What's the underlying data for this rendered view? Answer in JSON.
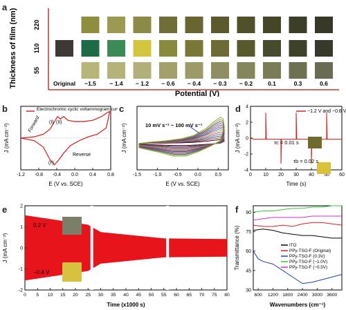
{
  "panels": {
    "a": {
      "label": "a"
    },
    "b": {
      "label": "b"
    },
    "c": {
      "label": "c"
    },
    "d": {
      "label": "d"
    },
    "e": {
      "label": "e"
    },
    "f": {
      "label": "f"
    }
  },
  "chart_data": [
    {
      "type": "table",
      "panel": "a",
      "ylabel": "Thickness of film (nm)",
      "xlabel": "Potential (V)",
      "rows": [
        "220",
        "110",
        "55"
      ],
      "columns": [
        "Original",
        "−1.5",
        "− 1.4",
        "− 1.2",
        "− 0.6",
        "− 0.4",
        "− 0.3",
        "− 0.2",
        "0.1",
        "0.3",
        "0.6"
      ],
      "colors": [
        [
          null,
          "#8f8d3e",
          "#9a9a52",
          "#8c8a47",
          "#6f6d38",
          "#676631",
          "#5b5a2c",
          "#50502a",
          "#454528",
          "#3d3e27",
          "#383828"
        ],
        [
          "#3e3936",
          "#1f6a46",
          "#3c8a55",
          "#d4c53e",
          "#8a8a3f",
          "#7a7837",
          "#6b6b33",
          "#585a2e",
          "#474a2c",
          "#3e4229",
          "#373a2a"
        ],
        [
          null,
          "#b7b578",
          "#b4b47a",
          "#b1b07a",
          "#a3a06c",
          "#9c9a68",
          "#8e8e62",
          "#84865c",
          "#7a7b57",
          "#6e7052",
          "#696b52"
        ]
      ]
    },
    {
      "type": "line",
      "panel": "b",
      "title": "",
      "legend": "Electrochromic cyclic voltammogram curve",
      "xlabel": "E (V vs. SCE)",
      "ylabel": "J (mA cm⁻²)",
      "xlim": [
        -1.2,
        0.8
      ],
      "ylim": [
        -0.28,
        0.22
      ],
      "xticks": [
        "-1.2",
        "-0.8",
        "-0.4",
        "0.0",
        "0.4",
        "0.8"
      ],
      "annotations": [
        "Forward",
        "Reverse",
        "(I)",
        "(II)",
        "(I')"
      ],
      "series": [
        {
          "values_x": [
            -1.2,
            -0.9,
            -0.7,
            -0.55,
            -0.45,
            -0.38,
            -0.32,
            -0.25,
            -0.15,
            0.0,
            0.2,
            0.4,
            0.6,
            0.72,
            0.78
          ],
          "values_y": [
            -0.03,
            -0.02,
            0.0,
            0.04,
            0.1,
            0.14,
            0.12,
            0.14,
            0.11,
            0.1,
            0.1,
            0.11,
            0.14,
            0.17,
            0.18
          ]
        },
        {
          "values_x": [
            0.78,
            0.7,
            0.5,
            0.3,
            0.1,
            -0.1,
            -0.25,
            -0.35,
            -0.45,
            -0.55,
            -0.7,
            -0.9,
            -1.2
          ],
          "values_y": [
            0.18,
            0.05,
            0.0,
            -0.02,
            -0.05,
            -0.09,
            -0.15,
            -0.2,
            -0.24,
            -0.2,
            -0.1,
            -0.05,
            -0.03
          ]
        }
      ]
    },
    {
      "type": "line",
      "panel": "c",
      "xlabel": "E (V vs. SCE)",
      "ylabel": "J (mA cm⁻²)",
      "xlim": [
        -1.5,
        0.75
      ],
      "xticks": [
        "-1.5",
        "-1.0",
        "-0.5",
        "0.0",
        "0.5"
      ],
      "annotation": "10 mV s⁻¹ ~ 100 mV s⁻¹",
      "series_colors": [
        "#000000",
        "#e41a1c",
        "#1f3fbf",
        "#2ca02c",
        "#d62fd6",
        "#e68a00",
        "#0a7f7f",
        "#7f1fbf",
        "#aa5500",
        "#0a7fff",
        "#c02040",
        "#3fbf3f",
        "#9a9a1a"
      ],
      "scale_factors": [
        0.15,
        0.22,
        0.29,
        0.36,
        0.43,
        0.5,
        0.57,
        0.64,
        0.71,
        0.78,
        0.85,
        0.92,
        1.0
      ]
    },
    {
      "type": "line",
      "panel": "d",
      "legend": "−1.2 V and −0.6 V",
      "xlabel": "Time (s)",
      "ylabel": "J (mA cm⁻²)",
      "xlim": [
        0,
        60
      ],
      "ylim": [
        -4,
        4
      ],
      "xticks": [
        "0",
        "10",
        "20",
        "30",
        "40",
        "50",
        "60"
      ],
      "yticks": [
        "4",
        "2",
        "0",
        "-2",
        "-4"
      ],
      "annotations": [
        "τc = 0.01 s",
        "τb = 0.02 s"
      ],
      "spike_times": [
        10,
        20,
        30,
        40,
        50
      ],
      "spike_values": [
        3.2,
        -3.2,
        3.2,
        -3.2,
        3.2
      ],
      "baseline": -0.15
    },
    {
      "type": "area",
      "panel": "e",
      "xlabel": "Time (x1000 s)",
      "ylabel": "J (mA cm⁻²)",
      "ylim": [
        -2,
        2
      ],
      "yticks": [
        "2",
        "1",
        "0",
        "-1",
        "-2"
      ],
      "xticks": [
        "0",
        "5",
        "10",
        "15",
        "20",
        "25",
        "30",
        "35",
        "40",
        "45",
        "50",
        "55",
        "60",
        "65",
        "70",
        "75",
        "80"
      ],
      "labels": [
        "0.2 V",
        "−0.4 V"
      ],
      "envelope": [
        {
          "x": 0,
          "upper": 1.55,
          "lower": -1.55
        },
        {
          "x": 25,
          "upper": 1.1,
          "lower": -1.1
        },
        {
          "x": 30,
          "upper": 0.75,
          "lower": -0.75
        },
        {
          "x": 55,
          "upper": 0.45,
          "lower": -0.45
        },
        {
          "x": 80,
          "upper": 0.42,
          "lower": -0.42
        }
      ]
    },
    {
      "type": "line",
      "panel": "f",
      "xlabel": "Wavenumbers (cm⁻¹)",
      "ylabel": "Transmittance (%)",
      "ylim": [
        30,
        95
      ],
      "yticks": [
        "90",
        "75",
        "60",
        "45",
        "30"
      ],
      "xticks": [
        "600",
        "1200",
        "1800",
        "2400",
        "3000",
        "3600"
      ],
      "xlim": [
        400,
        4000
      ],
      "series": [
        {
          "name": "ITO",
          "color": "#000000",
          "x": [
            400,
            800,
            1200,
            1600,
            2000,
            2400,
            2800,
            3200,
            3600,
            4000
          ],
          "y": [
            76,
            77,
            76,
            74,
            73,
            72,
            72,
            71,
            70,
            70
          ]
        },
        {
          "name": "PPy-TSO-F (Original)",
          "color": "#e41a1c",
          "x": [
            400,
            800,
            1200,
            1600,
            2000,
            2400,
            2800,
            3200,
            3600,
            4000
          ],
          "y": [
            80,
            79,
            79,
            80,
            79,
            81,
            82,
            82,
            81,
            80
          ]
        },
        {
          "name": "PPy-TSO-F (0.3V)",
          "color": "#1f3fbf",
          "x": [
            400,
            600,
            800,
            1200,
            1600,
            2000,
            2400,
            2800,
            3200,
            3600,
            4000
          ],
          "y": [
            60,
            54,
            52,
            50,
            45,
            40,
            35,
            36,
            38,
            40,
            42
          ]
        },
        {
          "name": "PPy-TSO-F (−1.0V)",
          "color": "#33cc33",
          "x": [
            400,
            800,
            1200,
            1600,
            2000,
            2400,
            2800,
            3200,
            3600,
            4000
          ],
          "y": [
            90,
            91,
            91,
            92,
            93,
            93,
            94,
            94,
            95,
            95
          ]
        },
        {
          "name": "PPy-TSO-F (−0.5V)",
          "color": "#cc33cc",
          "x": [
            400,
            800,
            1200,
            1600,
            2000,
            2400,
            2800,
            3200,
            3600,
            4000
          ],
          "y": [
            84,
            85,
            86,
            86,
            86,
            86,
            87,
            87,
            87,
            87
          ]
        }
      ]
    }
  ]
}
